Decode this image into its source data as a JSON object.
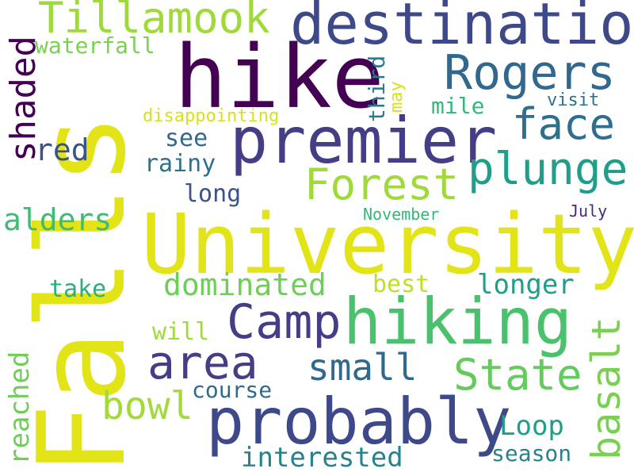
{
  "colors": {
    "background": "#ffffff",
    "palette": [
      "#440154",
      "#482878",
      "#3e4989",
      "#31688e",
      "#26828e",
      "#1f9e89",
      "#35b779",
      "#6ece58",
      "#b5de2b",
      "#fde725"
    ]
  },
  "words": [
    {
      "text": "Falls",
      "color": "#e3e418"
    },
    {
      "text": "University",
      "color": "#e3e418"
    },
    {
      "text": "hike",
      "color": "#440154"
    },
    {
      "text": "premier",
      "color": "#433e85"
    },
    {
      "text": "hiking",
      "color": "#4ac16d"
    },
    {
      "text": "probably",
      "color": "#3e4989"
    },
    {
      "text": "destination",
      "color": "#3e4989"
    },
    {
      "text": "Rogers",
      "color": "#31688e"
    },
    {
      "text": "Tillamook",
      "color": "#9fda3a"
    },
    {
      "text": "Forest",
      "color": "#9fda3a"
    },
    {
      "text": "plunge",
      "color": "#1f9e89"
    },
    {
      "text": "face",
      "color": "#2e6f8e"
    },
    {
      "text": "Camp",
      "color": "#433e85"
    },
    {
      "text": "area",
      "color": "#433e85"
    },
    {
      "text": "State",
      "color": "#65cb5e"
    },
    {
      "text": "small",
      "color": "#31688e"
    },
    {
      "text": "basalt",
      "color": "#7ad151"
    },
    {
      "text": "shaded",
      "color": "#440154"
    },
    {
      "text": "dominated",
      "color": "#6ece58"
    },
    {
      "text": "bowl",
      "color": "#a2da37"
    },
    {
      "text": "reached",
      "color": "#6ece58"
    },
    {
      "text": "interested",
      "color": "#26828e"
    },
    {
      "text": "Loop",
      "color": "#1f9e89"
    },
    {
      "text": "red",
      "color": "#3b528b"
    },
    {
      "text": "alders",
      "color": "#3ebc73"
    },
    {
      "text": "waterfall",
      "color": "#7ad151"
    },
    {
      "text": "longer",
      "color": "#1f9e89"
    },
    {
      "text": "season",
      "color": "#26828e"
    },
    {
      "text": "third",
      "color": "#2a788e"
    },
    {
      "text": "may",
      "color": "#d8e219"
    },
    {
      "text": "see",
      "color": "#31688e"
    },
    {
      "text": "rainy",
      "color": "#2c728e"
    },
    {
      "text": "long",
      "color": "#3b528b"
    },
    {
      "text": "mile",
      "color": "#35b779"
    },
    {
      "text": "visit",
      "color": "#2c728e"
    },
    {
      "text": "take",
      "color": "#2ab07f"
    },
    {
      "text": "best",
      "color": "#bddf26"
    },
    {
      "text": "will",
      "color": "#a2da37"
    },
    {
      "text": "course",
      "color": "#31688e"
    },
    {
      "text": "disappointing",
      "color": "#d8e219"
    },
    {
      "text": "November",
      "color": "#35b779"
    },
    {
      "text": "July",
      "color": "#482878"
    }
  ]
}
